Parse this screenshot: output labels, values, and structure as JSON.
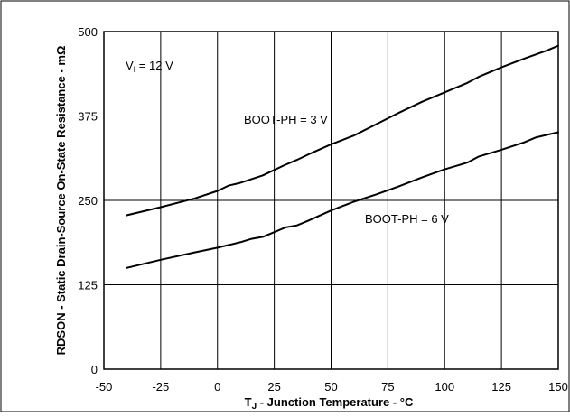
{
  "chart_data": {
    "type": "line",
    "title": "",
    "xlabel": "T_J - Junction Temperature - °C",
    "xlabel_main": "T",
    "xlabel_sub": "J",
    "xlabel_rest": " - Junction Temperature - °C",
    "ylabel": "RDSON - Static Drain-Source On-State Resistance - mΩ",
    "xlim": [
      -50,
      150
    ],
    "ylim": [
      0,
      500
    ],
    "xticks": [
      "-50",
      "-25",
      "0",
      "25",
      "50",
      "75",
      "100",
      "125",
      "150"
    ],
    "yticks": [
      "0",
      "125",
      "250",
      "375",
      "500"
    ],
    "grid": true,
    "condition_main": "V",
    "condition_sub": "I",
    "condition_rest": " = 12 V",
    "series": [
      {
        "name": "BOOT-PH = 3 V",
        "x": [
          -40,
          -25,
          -10,
          0,
          5,
          10,
          20,
          25,
          30,
          35,
          40,
          50,
          60,
          70,
          80,
          90,
          100,
          110,
          115,
          125,
          135,
          145,
          150
        ],
        "y": [
          228,
          240,
          253,
          264,
          272,
          276,
          287,
          295,
          303,
          310,
          318,
          333,
          346,
          363,
          380,
          396,
          410,
          424,
          433,
          447,
          460,
          472,
          479
        ]
      },
      {
        "name": "BOOT-PH = 6 V",
        "x": [
          -40,
          -25,
          -10,
          0,
          5,
          10,
          15,
          20,
          25,
          30,
          35,
          40,
          50,
          60,
          70,
          80,
          90,
          100,
          110,
          115,
          125,
          135,
          140,
          145,
          150
        ],
        "y": [
          150,
          162,
          173,
          180,
          184,
          188,
          193,
          196,
          203,
          210,
          213,
          220,
          235,
          248,
          259,
          271,
          284,
          296,
          306,
          315,
          325,
          336,
          343,
          347,
          351
        ]
      }
    ],
    "annotations": [
      "BOOT-PH = 3 V",
      "BOOT-PH = 6 V"
    ]
  }
}
